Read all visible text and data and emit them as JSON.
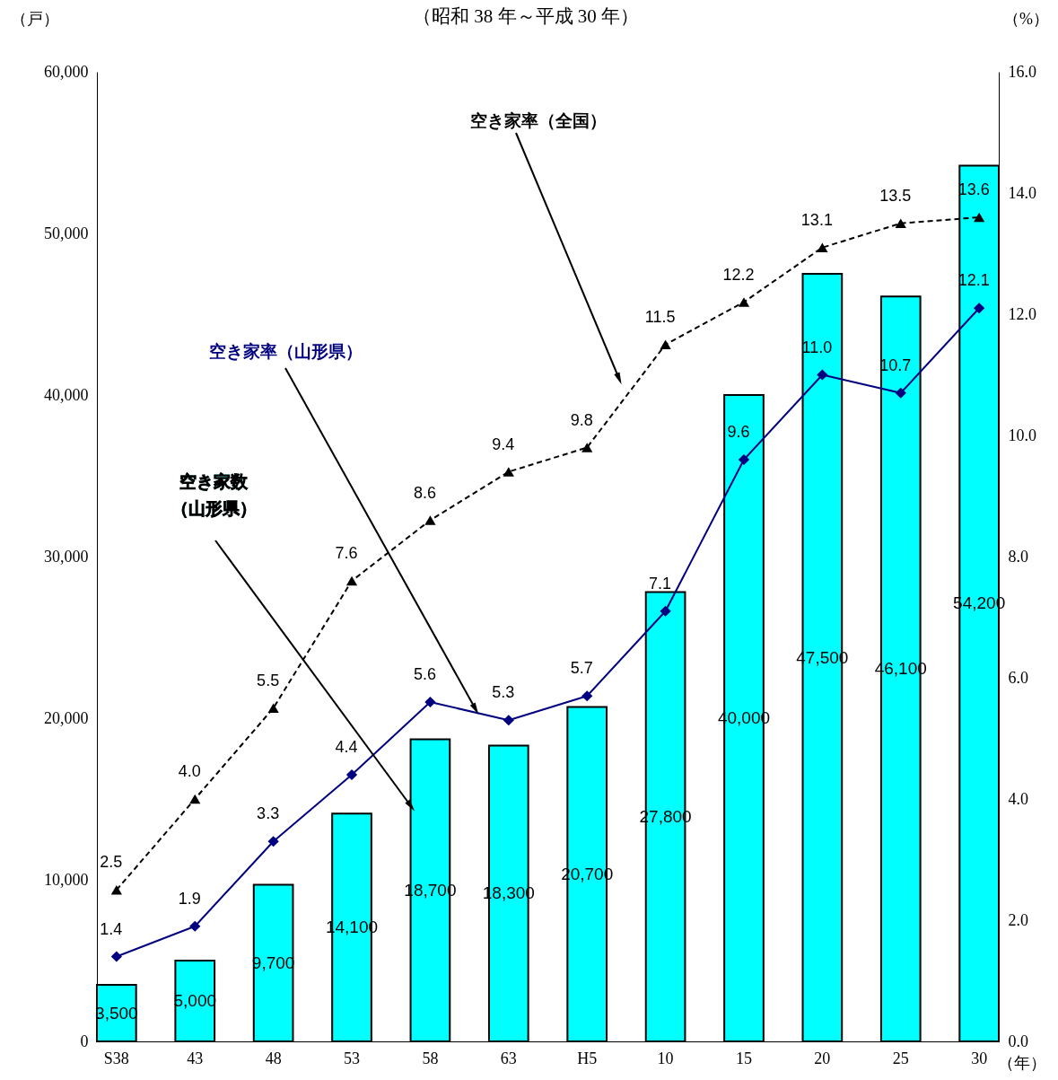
{
  "chart_data": {
    "type": "bar",
    "title": "（昭和 38 年～平成 30 年）",
    "xlabel": "（年）",
    "ylabel": "（戸）",
    "y2label": "（%）",
    "categories": [
      "S38",
      "43",
      "48",
      "53",
      "58",
      "63",
      "H5",
      "10",
      "15",
      "20",
      "25",
      "30"
    ],
    "series": [
      {
        "name": "空き家数（山形県）",
        "color": "#00ffff",
        "values": [
          3500,
          5000,
          9700,
          14100,
          18700,
          18300,
          20700,
          27800,
          40000,
          47500,
          46100,
          54200
        ],
        "value_labels": [
          "3,500",
          "5,000",
          "9,700",
          "14,100",
          "18,700",
          "18,300",
          "20,700",
          "27,800",
          "40,000",
          "47,500",
          "46,100",
          "54,200"
        ]
      },
      {
        "type": "line",
        "axis": "y2",
        "name": "空き家率（山形県）",
        "color": "#000080",
        "marker": "diamond",
        "line_style": "solid",
        "values": [
          1.4,
          1.9,
          3.3,
          4.4,
          5.6,
          5.3,
          5.7,
          7.1,
          9.6,
          11.0,
          10.7,
          12.1
        ],
        "value_labels": [
          "1.4",
          "1.9",
          "3.3",
          "4.4",
          "5.6",
          "5.3",
          "5.7",
          "7.1",
          "9.6",
          "11.0",
          "10.7",
          "12.1"
        ]
      },
      {
        "type": "line",
        "axis": "y2",
        "name": "空き家率（全国）",
        "color": "#000000",
        "marker": "triangle",
        "line_style": "dashed",
        "values": [
          2.5,
          4.0,
          5.5,
          7.6,
          8.6,
          9.4,
          9.8,
          11.5,
          12.2,
          13.1,
          13.5,
          13.6
        ],
        "value_labels": [
          "2.5",
          "4.0",
          "5.5",
          "7.6",
          "8.6",
          "9.4",
          "9.8",
          "11.5",
          "12.2",
          "13.1",
          "13.5",
          "13.6"
        ]
      }
    ],
    "ylim": [
      0,
      60000
    ],
    "yticks": [
      0,
      {
        "value": 10000,
        "label": "10,000"
      },
      {
        "value": 20000,
        "label": "20,000"
      },
      {
        "value": 30000,
        "label": "30,000"
      },
      {
        "value": 40000,
        "label": "40,000"
      },
      {
        "value": 50000,
        "label": "50,000"
      },
      {
        "value": 60000,
        "label": "60,000"
      }
    ],
    "y2lim": [
      0,
      16
    ],
    "y2ticks": [
      {
        "value": 0,
        "label": "0.0"
      },
      {
        "value": 2,
        "label": "2.0"
      },
      {
        "value": 4,
        "label": "4.0"
      },
      {
        "value": 6,
        "label": "6.0"
      },
      {
        "value": 8,
        "label": "8.0"
      },
      {
        "value": 10,
        "label": "10.0"
      },
      {
        "value": 12,
        "label": "12.0"
      },
      {
        "value": 14,
        "label": "14.0"
      },
      {
        "value": 16,
        "label": "16.0"
      }
    ],
    "grid": false
  }
}
